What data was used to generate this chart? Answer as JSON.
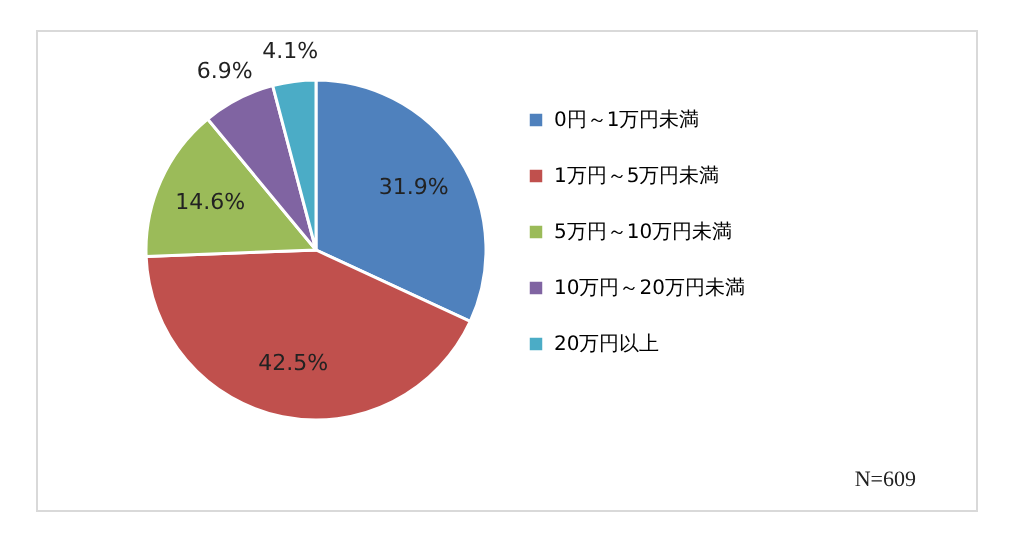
{
  "chart_data": {
    "type": "pie",
    "categories": [
      "0円～1万円未満",
      "1万円～5万円未満",
      "5万円～10万円未満",
      "10万円～20万円未満",
      "20万円以上"
    ],
    "values": [
      31.9,
      42.5,
      14.6,
      6.9,
      4.1
    ],
    "value_labels": [
      "31.9%",
      "42.5%",
      "14.6%",
      "6.9%",
      "4.1%"
    ],
    "colors": [
      "#4f81bd",
      "#c0504d",
      "#9bbb59",
      "#8064a2",
      "#4bacc6"
    ],
    "legend": "right",
    "annotations": [
      "N=609"
    ]
  }
}
